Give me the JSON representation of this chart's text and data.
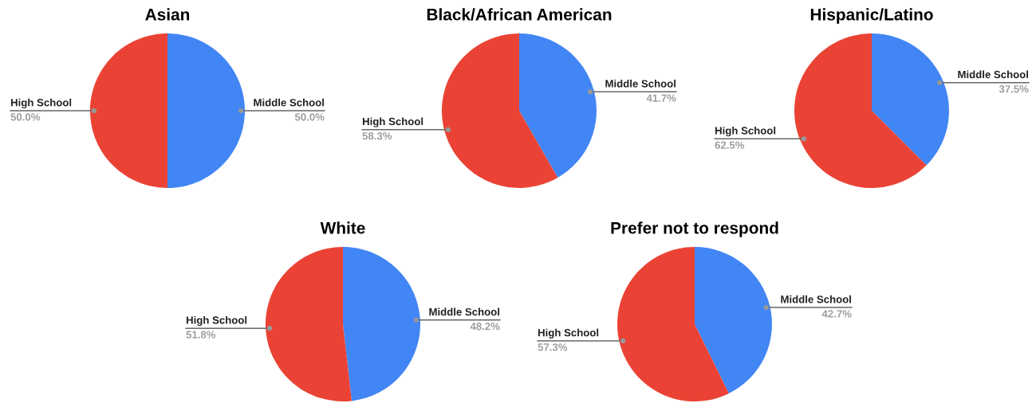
{
  "chart_data": [
    {
      "type": "pie",
      "title": "Asian",
      "categories": [
        "Middle School",
        "High School"
      ],
      "values": [
        50.0,
        50.0
      ],
      "colors": [
        "#4285f4",
        "#ea4335"
      ],
      "value_labels": [
        "50.0%",
        "50.0%"
      ]
    },
    {
      "type": "pie",
      "title": "Black/African American",
      "categories": [
        "Middle School",
        "High School"
      ],
      "values": [
        41.7,
        58.3
      ],
      "colors": [
        "#4285f4",
        "#ea4335"
      ],
      "value_labels": [
        "41.7%",
        "58.3%"
      ]
    },
    {
      "type": "pie",
      "title": "Hispanic/Latino",
      "categories": [
        "Middle School",
        "High School"
      ],
      "values": [
        37.5,
        62.5
      ],
      "colors": [
        "#4285f4",
        "#ea4335"
      ],
      "value_labels": [
        "37.5%",
        "62.5%"
      ]
    },
    {
      "type": "pie",
      "title": "White",
      "categories": [
        "Middle School",
        "High School"
      ],
      "values": [
        48.2,
        51.8
      ],
      "colors": [
        "#4285f4",
        "#ea4335"
      ],
      "value_labels": [
        "48.2%",
        "51.8%"
      ]
    },
    {
      "type": "pie",
      "title": "Prefer not to respond",
      "categories": [
        "Middle School",
        "High School"
      ],
      "values": [
        42.7,
        57.3
      ],
      "colors": [
        "#4285f4",
        "#ea4335"
      ],
      "value_labels": [
        "42.7%",
        "57.3%"
      ]
    }
  ]
}
